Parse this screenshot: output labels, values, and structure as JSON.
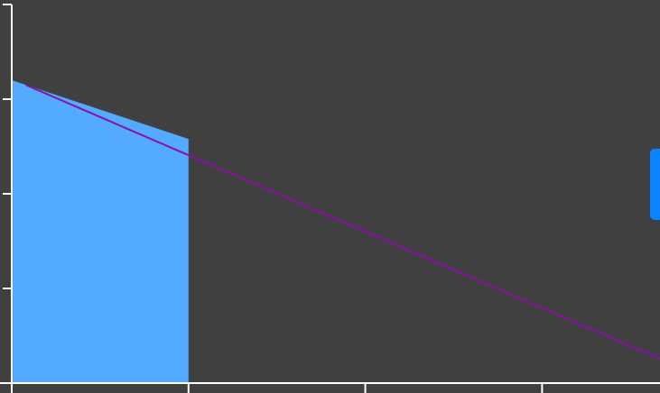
{
  "colors": {
    "background": "#404040",
    "axis": "#ffffff",
    "fill": "#53aaff",
    "line": "#8a0fa6",
    "side_tab": "#0a84ff"
  },
  "chart_data": {
    "type": "area",
    "title": "",
    "xlabel": "",
    "ylabel": "",
    "xlim": [
      0,
      3.8
    ],
    "ylim": [
      0,
      4
    ],
    "grid": false,
    "legend": "none",
    "series": [
      {
        "kind": "area",
        "x": [
          0,
          1
        ],
        "y": [
          3.2,
          2.58
        ],
        "color": "#53aaff"
      },
      {
        "kind": "line",
        "x": [
          0.08,
          3.8
        ],
        "y": [
          3.15,
          0.15
        ],
        "color": "#8a0fa6"
      }
    ],
    "x_ticks": [
      0,
      1,
      2,
      3
    ],
    "y_ticks": [
      0,
      1,
      2,
      3,
      4
    ]
  },
  "side_tab": {
    "icon": "panel-handle-icon"
  }
}
